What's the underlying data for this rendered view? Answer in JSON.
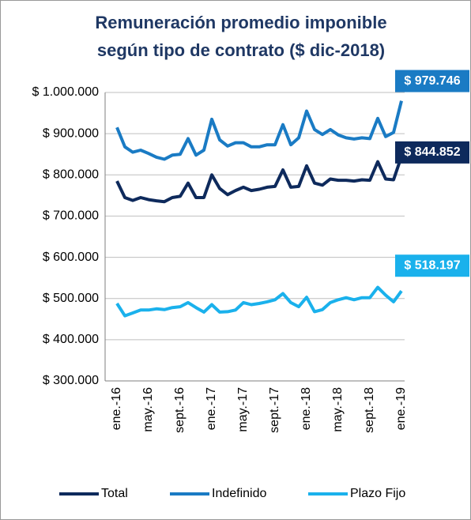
{
  "chart_data": {
    "type": "line",
    "title": [
      "Remuneración promedio imponible",
      "según tipo de contrato ($ dic-2018)"
    ],
    "categories": [
      "ene.-16",
      null,
      null,
      null,
      "may.-16",
      null,
      null,
      null,
      "sept.-16",
      null,
      null,
      null,
      "ene.-17",
      null,
      null,
      null,
      "may.-17",
      null,
      null,
      null,
      "sept.-17",
      null,
      null,
      null,
      "ene.-18",
      null,
      null,
      null,
      "may.-18",
      null,
      null,
      null,
      "sept.-18",
      null,
      null,
      null,
      "ene.-19"
    ],
    "series": [
      {
        "name": "Total",
        "color": "#0e2a5c",
        "values": [
          785000,
          745000,
          738000,
          745000,
          740000,
          737000,
          735000,
          745000,
          748000,
          780000,
          745000,
          745000,
          800000,
          767000,
          752000,
          762000,
          770000,
          762000,
          765000,
          770000,
          772000,
          812000,
          770000,
          772000,
          822000,
          780000,
          775000,
          790000,
          787000,
          787000,
          785000,
          788000,
          787000,
          832000,
          790000,
          788000,
          844852
        ],
        "value_labels": [
          null,
          null,
          null,
          null,
          null,
          null,
          null,
          null,
          null,
          null,
          null,
          null,
          null,
          null,
          null,
          null,
          null,
          null,
          null,
          null,
          null,
          null,
          null,
          null,
          null,
          null,
          null,
          null,
          null,
          null,
          null,
          null,
          null,
          null,
          null,
          null,
          "$ 844.852"
        ]
      },
      {
        "name": "Indefinido",
        "color": "#1a7bc4",
        "values": [
          915000,
          868000,
          855000,
          860000,
          852000,
          843000,
          838000,
          848000,
          850000,
          888000,
          848000,
          860000,
          935000,
          885000,
          870000,
          878000,
          878000,
          868000,
          868000,
          873000,
          873000,
          922000,
          873000,
          890000,
          955000,
          910000,
          898000,
          910000,
          897000,
          890000,
          887000,
          890000,
          888000,
          937000,
          893000,
          903000,
          979746
        ],
        "value_labels": [
          null,
          null,
          null,
          null,
          null,
          null,
          null,
          null,
          null,
          null,
          null,
          null,
          null,
          null,
          null,
          null,
          null,
          null,
          null,
          null,
          null,
          null,
          null,
          null,
          null,
          null,
          null,
          null,
          null,
          null,
          null,
          null,
          null,
          null,
          null,
          null,
          "$ 979.746"
        ]
      },
      {
        "name": "Plazo Fijo",
        "color": "#1ab1ec",
        "values": [
          488000,
          458000,
          465000,
          472000,
          472000,
          475000,
          473000,
          478000,
          480000,
          490000,
          478000,
          467000,
          485000,
          467000,
          468000,
          472000,
          490000,
          485000,
          488000,
          492000,
          497000,
          512000,
          490000,
          480000,
          503000,
          468000,
          473000,
          490000,
          497000,
          502000,
          497000,
          502000,
          502000,
          527000,
          508000,
          492000,
          518197
        ],
        "value_labels": [
          null,
          null,
          null,
          null,
          null,
          null,
          null,
          null,
          null,
          null,
          null,
          null,
          null,
          null,
          null,
          null,
          null,
          null,
          null,
          null,
          null,
          null,
          null,
          null,
          null,
          null,
          null,
          null,
          null,
          null,
          null,
          null,
          null,
          null,
          null,
          null,
          "$ 518.197"
        ]
      }
    ],
    "ylim": [
      300000,
      1000000
    ],
    "yticks": [
      {
        "value": 300000,
        "label": "$ 300.000"
      },
      {
        "value": 400000,
        "label": "$ 400.000"
      },
      {
        "value": 500000,
        "label": "$ 500.000"
      },
      {
        "value": 600000,
        "label": "$ 600.000"
      },
      {
        "value": 700000,
        "label": "$ 700.000"
      },
      {
        "value": 800000,
        "label": "$ 800.000"
      },
      {
        "value": 900000,
        "label": "$ 900.000"
      },
      {
        "value": 1000000,
        "label": "$ 1.000.000"
      }
    ],
    "grid": true,
    "legend": "bottom"
  }
}
